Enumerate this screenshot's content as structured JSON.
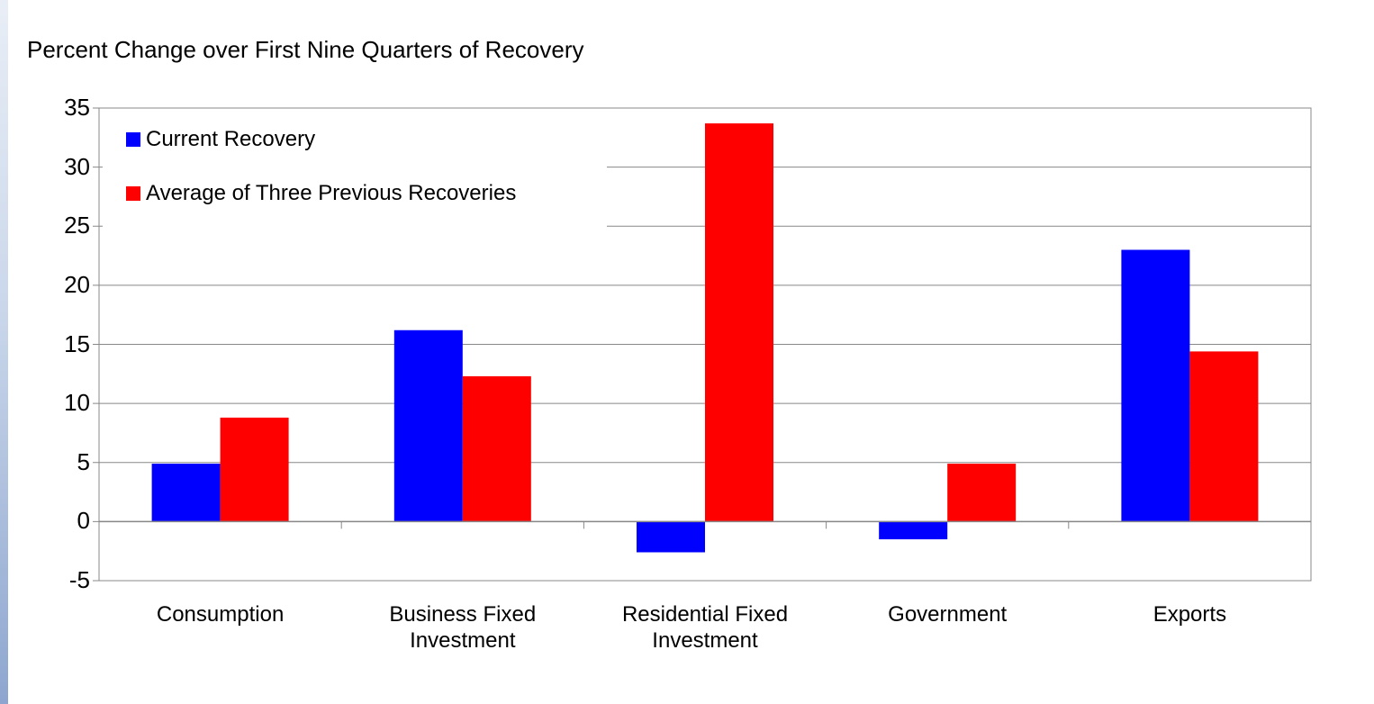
{
  "chart_data": {
    "type": "bar",
    "title": "Percent Change over First Nine Quarters of Recovery",
    "categories": [
      "Consumption",
      "Business Fixed\nInvestment",
      "Residential Fixed\nInvestment",
      "Government",
      "Exports"
    ],
    "series": [
      {
        "name": "Current Recovery",
        "color": "#0000ff",
        "values": [
          4.9,
          16.2,
          -2.6,
          -1.5,
          23.0
        ]
      },
      {
        "name": "Average of Three Previous Recoveries",
        "color": "#ff0000",
        "values": [
          8.8,
          12.3,
          33.7,
          4.9,
          14.4
        ]
      }
    ],
    "ylim": [
      -5,
      35
    ],
    "yticks": [
      "35",
      "30",
      "25",
      "20",
      "15",
      "10",
      "5",
      "0",
      "-5"
    ],
    "ytick_values": [
      35,
      30,
      25,
      20,
      15,
      10,
      5,
      0,
      -5
    ],
    "grid": true,
    "legend_position": "top-left"
  }
}
